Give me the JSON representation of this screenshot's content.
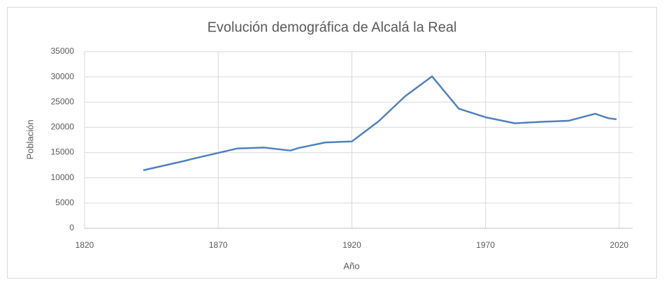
{
  "chart_data": {
    "type": "line",
    "title": "Evolución demográfica de Alcalá la Real",
    "x_label": "Año",
    "y_label": "Población",
    "series": [
      {
        "name": "Población",
        "color": "#4f81bd",
        "x": [
          1842,
          1857,
          1860,
          1877,
          1887,
          1897,
          1900,
          1910,
          1920,
          1930,
          1940,
          1950,
          1960,
          1970,
          1981,
          1991,
          2001,
          2011,
          2016,
          2019
        ],
        "values": [
          11500,
          13300,
          13700,
          15800,
          16000,
          15400,
          15900,
          17000,
          17200,
          21200,
          26200,
          30100,
          23700,
          22000,
          20800,
          21100,
          21300,
          22700,
          21800,
          21600
        ]
      }
    ],
    "xlim": [
      1820,
      2025
    ],
    "xticks": [
      1820,
      1870,
      1920,
      1970,
      2020
    ],
    "ylim": [
      0,
      35000
    ],
    "yticks": [
      0,
      5000,
      10000,
      15000,
      20000,
      25000,
      30000,
      35000
    ],
    "grid": true
  }
}
